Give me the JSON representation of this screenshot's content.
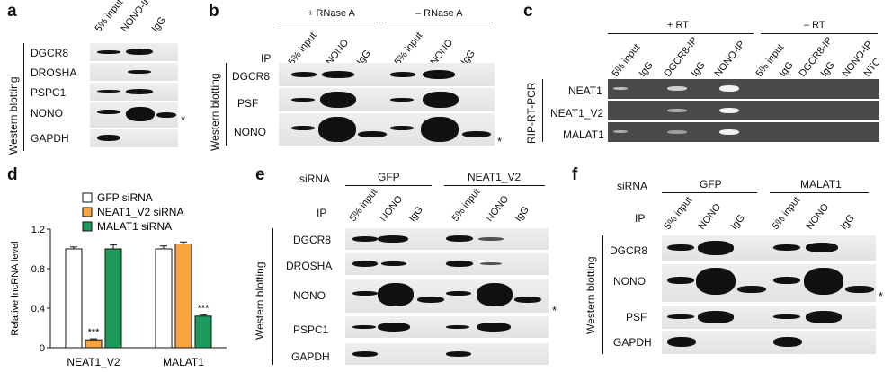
{
  "panels": {
    "a": {
      "label": "a",
      "side_label": "Western blotting",
      "lanes": [
        "5% input",
        "NONO-IP",
        "IgG"
      ],
      "rows": [
        "DGCR8",
        "DROSHA",
        "PSPC1",
        "NONO",
        "GAPDH"
      ],
      "star": "*"
    },
    "b": {
      "label": "b",
      "side_label": "Western blotting",
      "group1": "+ RNase A",
      "group2": "– RNase A",
      "ip_label": "IP",
      "lanes": [
        "5% input",
        "NONO",
        "IgG",
        "5% input",
        "NONO",
        "IgG"
      ],
      "rows": [
        "DGCR8",
        "PSF",
        "NONO"
      ],
      "star": "*"
    },
    "c": {
      "label": "c",
      "side_label": "RIP-RT-PCR",
      "group1": "+ RT",
      "group2": "– RT",
      "lanes": [
        "5% input",
        "IgG",
        "DGCR8-IP",
        "IgG",
        "NONO-IP",
        "5% input",
        "IgG",
        "DGCR8-IP",
        "IgG",
        "NONO-IP",
        "NTC"
      ],
      "rows": [
        "NEAT1",
        "NEAT1_V2",
        "MALAT1"
      ]
    },
    "d": {
      "label": "d",
      "sig1": "***",
      "sig2": "***"
    },
    "e": {
      "label": "e",
      "side_label": "Western blotting",
      "sirna_label": "siRNA",
      "group1": "GFP",
      "group2": "NEAT1_V2",
      "ip_label": "IP",
      "lanes": [
        "5% input",
        "NONO",
        "IgG",
        "5% input",
        "NONO",
        "IgG"
      ],
      "rows": [
        "DGCR8",
        "DROSHA",
        "NONO",
        "PSPC1",
        "GAPDH"
      ],
      "star": "*"
    },
    "f": {
      "label": "f",
      "side_label": "Western blotting",
      "sirna_label": "siRNA",
      "group1": "GFP",
      "group2": "MALAT1",
      "ip_label": "IP",
      "lanes": [
        "5% input",
        "NONO",
        "IgG",
        "5% input",
        "NONO",
        "IgG"
      ],
      "rows": [
        "DGCR8",
        "NONO",
        "PSF",
        "GAPDH"
      ],
      "star": "*"
    }
  },
  "chart_data": {
    "type": "bar",
    "categories": [
      "NEAT1_V2",
      "MALAT1"
    ],
    "ylabel": "Relative lncRNA level",
    "ylim": [
      0,
      1.2
    ],
    "yticks": [
      "0",
      "0.4",
      "0.8",
      "1.2"
    ],
    "series": [
      {
        "name": "GFP siRNA",
        "values": [
          1.0,
          1.0
        ],
        "errors": [
          0.02,
          0.03
        ],
        "color": "#ffffff"
      },
      {
        "name": "NEAT1_V2 siRNA",
        "values": [
          0.08,
          1.05
        ],
        "errors": [
          0.01,
          0.02
        ],
        "color": "#f7a541"
      },
      {
        "name": "MALAT1 siRNA",
        "values": [
          1.0,
          0.32
        ],
        "errors": [
          0.04,
          0.01
        ],
        "color": "#1e9a5c"
      }
    ]
  }
}
